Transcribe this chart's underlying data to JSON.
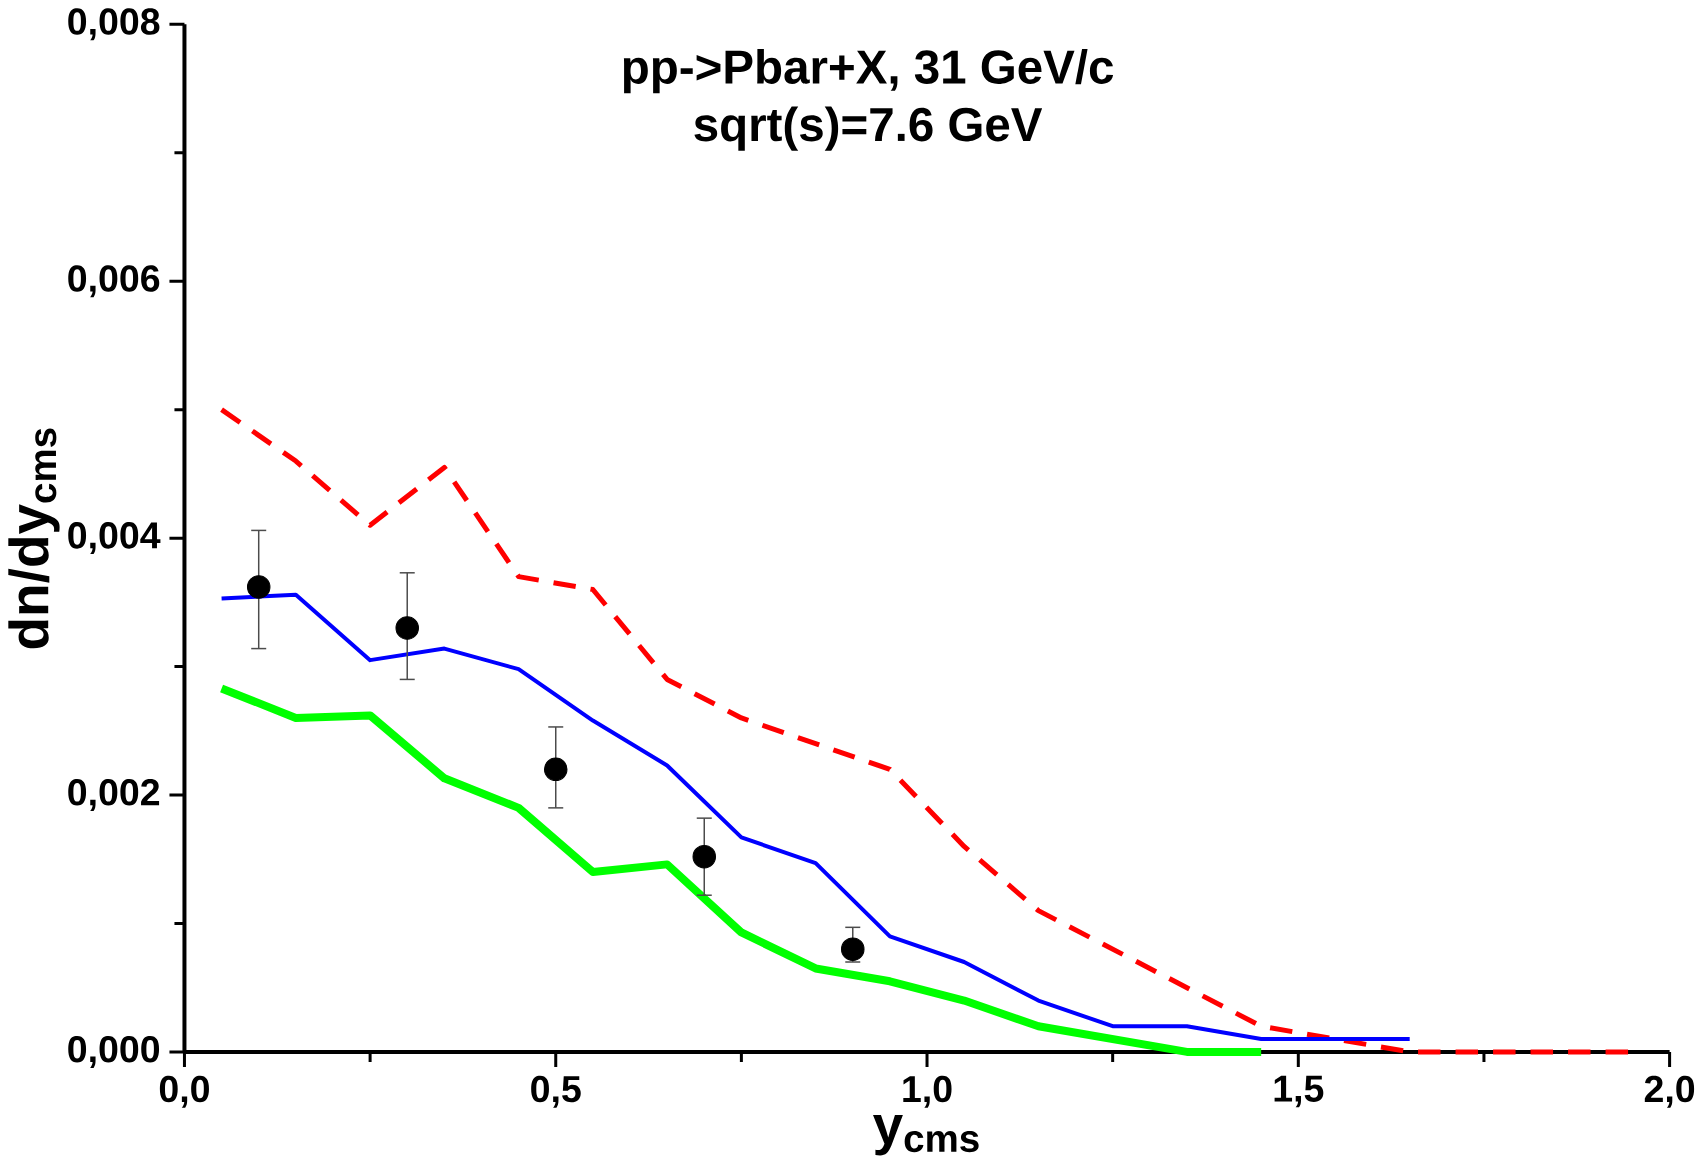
{
  "chart_data": {
    "type": "line",
    "title": "pp->Pbar+X, 31 GeV/c",
    "subtitle": "sqrt(s)=7.6 GeV",
    "xlabel": "y$_{cms}$",
    "ylabel": "dn/dy$_{cms}$",
    "xlim": [
      0,
      2
    ],
    "ylim": [
      0,
      0.008
    ],
    "xticks": [
      {
        "value": 0,
        "label": "0,0"
      },
      {
        "value": 0.5,
        "label": "0,5"
      },
      {
        "value": 1,
        "label": "1,0"
      },
      {
        "value": 1.5,
        "label": "1,5"
      },
      {
        "value": 2,
        "label": "2,0"
      }
    ],
    "yticks": [
      {
        "value": 0,
        "label": "0,000"
      },
      {
        "value": 0.002,
        "label": "0,002"
      },
      {
        "value": 0.004,
        "label": "0,004"
      },
      {
        "value": 0.006,
        "label": "0,006"
      },
      {
        "value": 0.008,
        "label": "0,008"
      }
    ],
    "grid": false,
    "series": [
      {
        "color": "#ff0000",
        "line_style": "dashed",
        "marker": "none",
        "x": [
          0.05,
          0.15,
          0.25,
          0.35,
          0.45,
          0.55,
          0.65,
          0.75,
          0.85,
          0.95,
          1.05,
          1.15,
          1.25,
          1.35,
          1.45,
          1.55,
          1.65,
          1.75,
          1.85,
          1.95
        ],
        "values": [
          0.005,
          0.0046,
          0.0041,
          0.00455,
          0.0037,
          0.0036,
          0.0029,
          0.0026,
          0.0024,
          0.0022,
          0.0016,
          0.0011,
          0.0008,
          0.0005,
          0.0002,
          0.0001,
          0,
          0,
          0,
          0
        ]
      },
      {
        "color": "#0000ff",
        "line_style": "solid",
        "marker": "none",
        "x": [
          0.05,
          0.15,
          0.25,
          0.35,
          0.45,
          0.55,
          0.65,
          0.75,
          0.85,
          0.95,
          1.05,
          1.15,
          1.25,
          1.35,
          1.45,
          1.55,
          1.65
        ],
        "values": [
          0.00353,
          0.00356,
          0.00305,
          0.00314,
          0.00298,
          0.00258,
          0.00223,
          0.00167,
          0.00147,
          0.0009,
          0.0007,
          0.0004,
          0.0002,
          0.0002,
          0.0001,
          0.0001,
          0.0001
        ]
      },
      {
        "color": "#00ff00",
        "line_style": "solid",
        "marker": "none",
        "x": [
          0.05,
          0.15,
          0.25,
          0.35,
          0.45,
          0.55,
          0.65,
          0.75,
          0.85,
          0.95,
          1.05,
          1.15,
          1.25,
          1.35,
          1.45
        ],
        "values": [
          0.00283,
          0.0026,
          0.00262,
          0.00213,
          0.0019,
          0.0014,
          0.00146,
          0.00093,
          0.00065,
          0.00055,
          0.0004,
          0.0002,
          0.0001,
          0,
          0
        ]
      },
      {
        "type": "scatter",
        "color": "#000000",
        "marker": "circle",
        "x": [
          0.1,
          0.3,
          0.5,
          0.7,
          0.9
        ],
        "values": [
          0.00362,
          0.0033,
          0.0022,
          0.00152,
          0.0008
        ],
        "errors": [
          [
            0.00314,
            0.00406
          ],
          [
            0.0029,
            0.00373
          ],
          [
            0.0019,
            0.00253
          ],
          [
            0.00122,
            0.00182
          ],
          [
            0.0007,
            0.00097
          ]
        ]
      }
    ]
  }
}
